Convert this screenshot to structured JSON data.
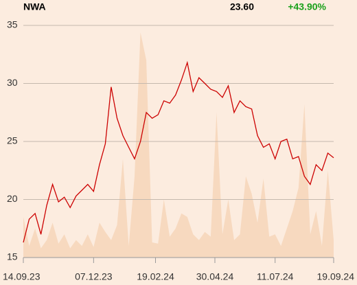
{
  "chart_data": {
    "type": "line",
    "title": "NWA",
    "price": "23.60",
    "change": "+43.90%",
    "change_color": "#1aa01a",
    "x": [
      "2023-09-14",
      "2023-09-21",
      "2023-09-28",
      "2023-10-05",
      "2023-10-12",
      "2023-10-19",
      "2023-10-26",
      "2023-11-02",
      "2023-11-09",
      "2023-11-16",
      "2023-11-23",
      "2023-11-30",
      "2023-12-07",
      "2023-12-14",
      "2023-12-21",
      "2023-12-28",
      "2024-01-04",
      "2024-01-11",
      "2024-01-18",
      "2024-01-25",
      "2024-02-01",
      "2024-02-08",
      "2024-02-15",
      "2024-02-22",
      "2024-02-29",
      "2024-03-07",
      "2024-03-14",
      "2024-03-21",
      "2024-03-28",
      "2024-04-04",
      "2024-04-11",
      "2024-04-18",
      "2024-04-25",
      "2024-05-02",
      "2024-05-09",
      "2024-05-16",
      "2024-05-23",
      "2024-05-30",
      "2024-06-06",
      "2024-06-13",
      "2024-06-20",
      "2024-06-27",
      "2024-07-04",
      "2024-07-11",
      "2024-07-18",
      "2024-07-25",
      "2024-08-01",
      "2024-08-08",
      "2024-08-15",
      "2024-08-22",
      "2024-08-29",
      "2024-09-05",
      "2024-09-12",
      "2024-09-19"
    ],
    "series": [
      {
        "color": "#cc0000",
        "values": [
          16.3,
          18.3,
          18.8,
          17.0,
          19.5,
          21.3,
          19.8,
          20.2,
          19.3,
          20.3,
          20.8,
          21.3,
          20.7,
          23.0,
          24.8,
          29.7,
          27.0,
          25.5,
          24.5,
          23.5,
          25.0,
          27.5,
          27.0,
          27.3,
          28.5,
          28.3,
          29.0,
          30.3,
          31.8,
          29.3,
          30.5,
          30.0,
          29.5,
          29.3,
          28.8,
          29.8,
          27.5,
          28.5,
          28.0,
          27.8,
          25.5,
          24.5,
          24.8,
          23.5,
          25.0,
          25.2,
          23.5,
          23.7,
          22.0,
          21.3,
          23.0,
          22.5,
          24.0,
          23.6
        ]
      },
      {
        "color": "#f7d9bf",
        "fill": true,
        "values": [
          18.5,
          16.0,
          17.5,
          15.8,
          16.5,
          18.0,
          16.2,
          17.0,
          15.8,
          16.5,
          16.0,
          17.0,
          15.9,
          18.0,
          17.2,
          16.5,
          17.8,
          23.5,
          16.0,
          22.0,
          34.4,
          32.0,
          16.3,
          16.2,
          20.0,
          16.8,
          17.5,
          18.8,
          18.5,
          17.0,
          16.5,
          17.2,
          16.8,
          27.5,
          17.0,
          20.0,
          16.5,
          17.0,
          22.0,
          20.5,
          18.0,
          21.8,
          16.8,
          17.0,
          16.0,
          17.5,
          19.0,
          21.0,
          28.2,
          17.0,
          19.0,
          16.0,
          22.5,
          16.5
        ]
      }
    ],
    "ylim": [
      15,
      35
    ],
    "yticks": [
      15,
      20,
      25,
      30,
      35
    ],
    "grid": true,
    "xlim": [
      "2023-09-14",
      "2024-09-19"
    ],
    "xticks": [
      {
        "value": "2023-09-14",
        "label": "14.09.23"
      },
      {
        "value": "2023-12-07",
        "label": "07.12.23"
      },
      {
        "value": "2024-02-19",
        "label": "19.02.24"
      },
      {
        "value": "2024-04-30",
        "label": "30.04.24"
      },
      {
        "value": "2024-07-11",
        "label": "11.07.24"
      },
      {
        "value": "2024-09-19",
        "label": "19.09.24"
      }
    ]
  }
}
